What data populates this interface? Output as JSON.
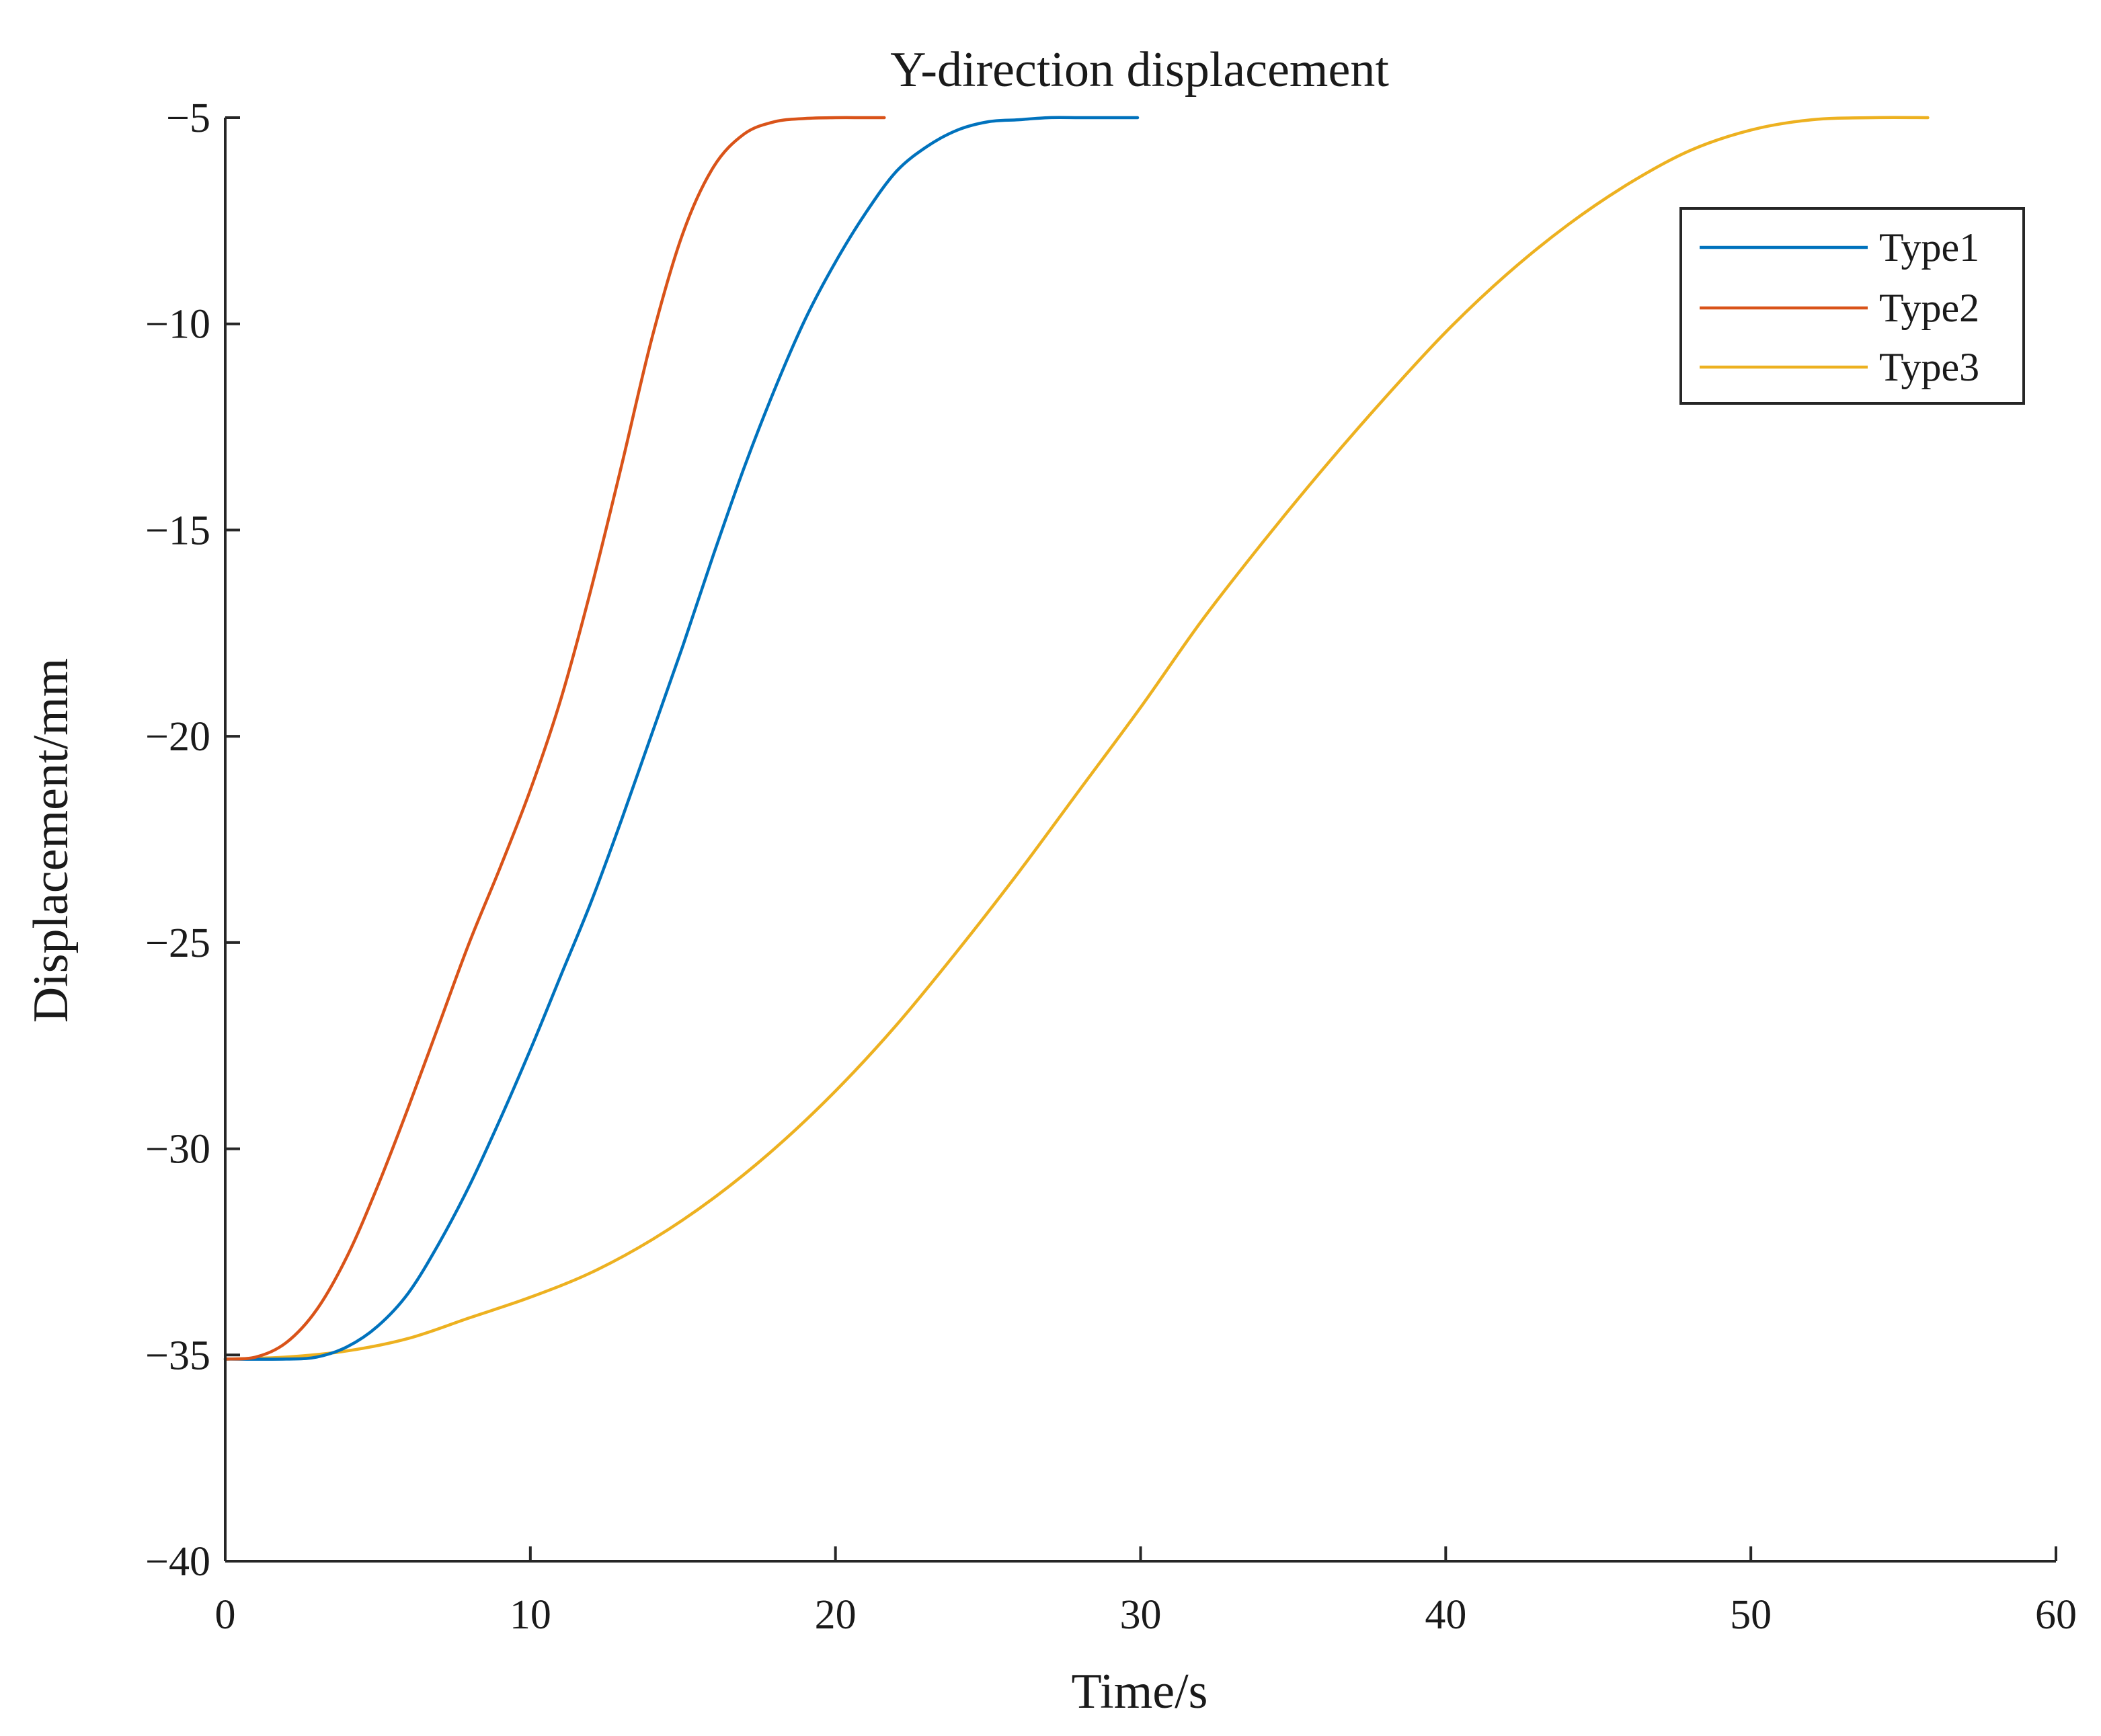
{
  "chart_data": {
    "type": "line",
    "title": "Y-direction displacement",
    "xlabel": "Time/s",
    "ylabel": "Displacement/mm",
    "xlim": [
      0,
      60
    ],
    "ylim": [
      -40,
      -5
    ],
    "xticks": [
      0,
      10,
      20,
      30,
      40,
      50,
      60
    ],
    "yticks": [
      -40,
      -35,
      -30,
      -25,
      -20,
      -15,
      -10,
      -5
    ],
    "xtick_labels": [
      "0",
      "10",
      "20",
      "30",
      "40",
      "50",
      "60"
    ],
    "ytick_labels": [
      "−40",
      "−35",
      "−30",
      "−25",
      "−20",
      "−15",
      "−10",
      "−5"
    ],
    "grid": false,
    "legend_position": "top-right",
    "series": [
      {
        "name": "Type1",
        "color": "#0072BD",
        "x": [
          0,
          2,
          3,
          4,
          5,
          6,
          7,
          8,
          9,
          10,
          11,
          12,
          13,
          14,
          15,
          16,
          17,
          18,
          19,
          20,
          21,
          22,
          23,
          24,
          25,
          26,
          27,
          28,
          29,
          29.9
        ],
        "y": [
          -35.1,
          -35.1,
          -35.05,
          -34.8,
          -34.3,
          -33.5,
          -32.3,
          -30.9,
          -29.3,
          -27.6,
          -25.8,
          -24.0,
          -22.0,
          -19.9,
          -17.8,
          -15.6,
          -13.5,
          -11.6,
          -9.9,
          -8.5,
          -7.3,
          -6.3,
          -5.7,
          -5.3,
          -5.1,
          -5.05,
          -5.0,
          -5.0,
          -5.0,
          -5.0
        ]
      },
      {
        "name": "Type2",
        "color": "#D95319",
        "x": [
          0,
          1,
          2,
          3,
          4,
          5,
          6,
          7,
          8,
          9,
          10,
          11,
          12,
          13,
          14,
          15,
          16,
          17,
          18,
          19,
          20,
          21,
          21.6
        ],
        "y": [
          -35.1,
          -35.05,
          -34.7,
          -33.9,
          -32.6,
          -30.9,
          -29.0,
          -27.0,
          -25.0,
          -23.2,
          -21.3,
          -19.1,
          -16.4,
          -13.4,
          -10.3,
          -7.8,
          -6.2,
          -5.4,
          -5.1,
          -5.02,
          -5.0,
          -5.0,
          -5.0
        ]
      },
      {
        "name": "Type3",
        "color": "#EDB120",
        "x": [
          0,
          2,
          4,
          6,
          8,
          10,
          12,
          14,
          16,
          18,
          20,
          22,
          24,
          26,
          28,
          30,
          32,
          34,
          36,
          38,
          40,
          42,
          44,
          46,
          48,
          50,
          52,
          54,
          55.8
        ],
        "y": [
          -35.1,
          -35.05,
          -34.9,
          -34.6,
          -34.1,
          -33.6,
          -33.0,
          -32.2,
          -31.2,
          -30.0,
          -28.6,
          -27.0,
          -25.2,
          -23.3,
          -21.3,
          -19.3,
          -17.2,
          -15.3,
          -13.5,
          -11.8,
          -10.2,
          -8.8,
          -7.6,
          -6.6,
          -5.8,
          -5.3,
          -5.05,
          -5.0,
          -5.0
        ]
      }
    ]
  }
}
